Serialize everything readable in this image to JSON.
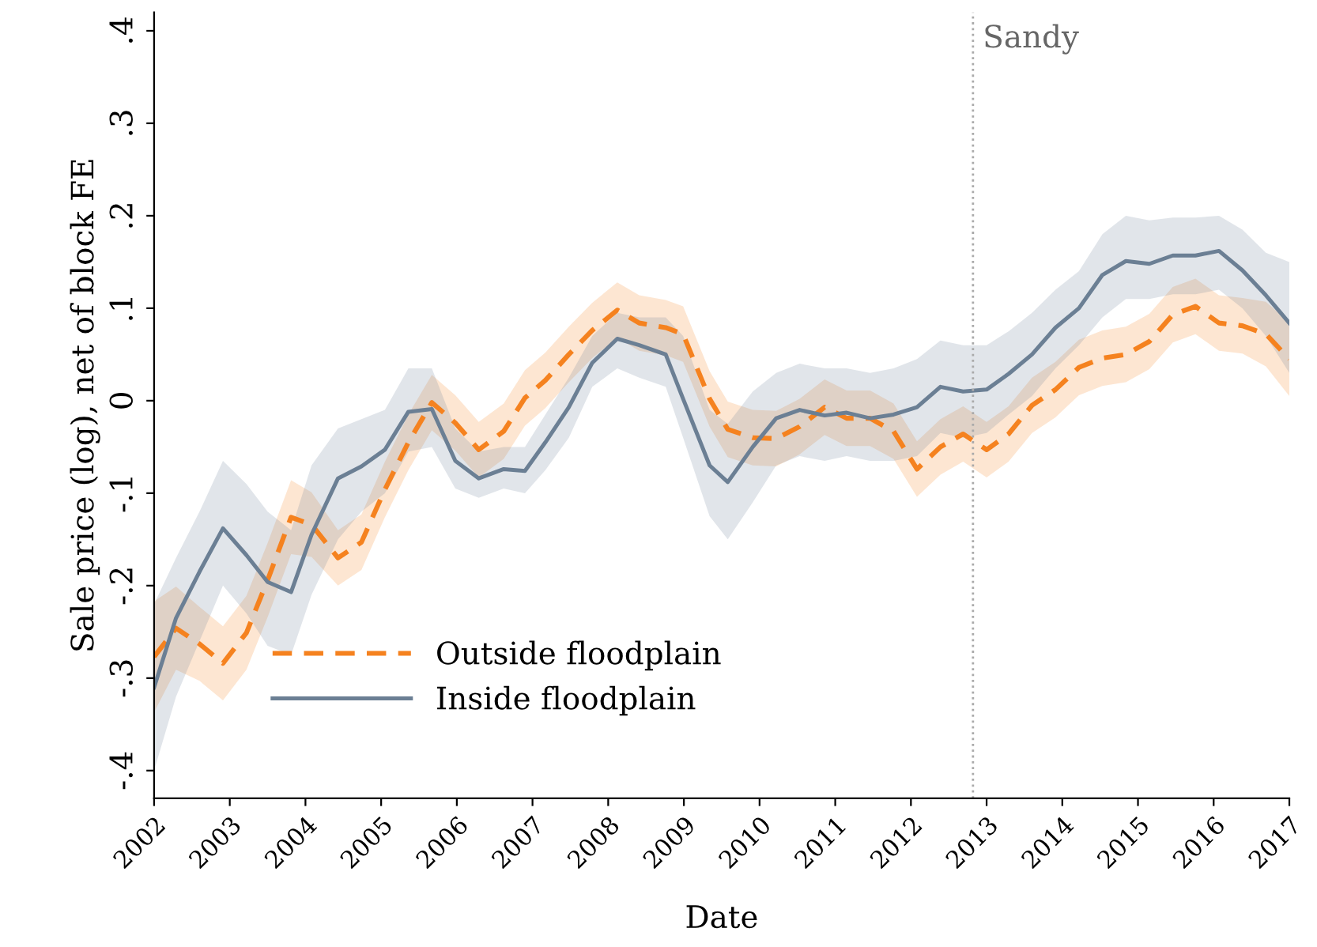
{
  "chart_data": {
    "type": "line",
    "xlabel": "Date",
    "ylabel": "Sale price (log), net of block FE",
    "x": [
      2002,
      2002.29,
      2002.6,
      2002.91,
      2003.22,
      2003.5,
      2003.81,
      2004.08,
      2004.43,
      2004.74,
      2005.05,
      2005.36,
      2005.67,
      2005.98,
      2006.29,
      2006.62,
      2006.9,
      2007.17,
      2007.48,
      2007.79,
      2008.12,
      2008.41,
      2008.76,
      2008.99,
      2009.34,
      2009.58,
      2009.91,
      2010.22,
      2010.53,
      2010.86,
      2011.15,
      2011.46,
      2011.77,
      2012.08,
      2012.39,
      2012.69,
      2013.0,
      2013.29,
      2013.6,
      2013.91,
      2014.22,
      2014.53,
      2014.84,
      2015.15,
      2015.46,
      2015.76,
      2016.07,
      2016.38,
      2016.69,
      2017.0
    ],
    "series": [
      {
        "name": "Outside floodplain",
        "color": "#f5821f",
        "line_style": "dashed",
        "values": [
          -0.277,
          -0.246,
          -0.263,
          -0.284,
          -0.251,
          -0.194,
          -0.126,
          -0.134,
          -0.17,
          -0.153,
          -0.096,
          -0.045,
          -0.002,
          -0.024,
          -0.053,
          -0.033,
          0.003,
          0.022,
          0.05,
          0.076,
          0.098,
          0.084,
          0.079,
          0.072,
          0.002,
          -0.031,
          -0.04,
          -0.041,
          -0.028,
          -0.007,
          -0.019,
          -0.019,
          -0.033,
          -0.074,
          -0.05,
          -0.036,
          -0.053,
          -0.036,
          -0.005,
          0.012,
          0.036,
          0.046,
          0.05,
          0.064,
          0.093,
          0.102,
          0.084,
          0.081,
          0.072,
          0.045
        ],
        "lower": [
          -0.337,
          -0.291,
          -0.303,
          -0.324,
          -0.291,
          -0.234,
          -0.166,
          -0.169,
          -0.2,
          -0.183,
          -0.126,
          -0.075,
          -0.032,
          -0.054,
          -0.083,
          -0.063,
          -0.027,
          -0.008,
          0.02,
          0.046,
          0.068,
          0.054,
          0.049,
          0.042,
          -0.028,
          -0.061,
          -0.07,
          -0.071,
          -0.058,
          -0.037,
          -0.049,
          -0.049,
          -0.063,
          -0.104,
          -0.08,
          -0.066,
          -0.083,
          -0.066,
          -0.035,
          -0.018,
          0.006,
          0.016,
          0.02,
          0.034,
          0.063,
          0.072,
          0.054,
          0.051,
          0.037,
          0.005
        ],
        "upper": [
          -0.217,
          -0.201,
          -0.223,
          -0.244,
          -0.211,
          -0.154,
          -0.086,
          -0.099,
          -0.14,
          -0.123,
          -0.066,
          -0.015,
          0.028,
          0.006,
          -0.023,
          -0.003,
          0.033,
          0.052,
          0.08,
          0.106,
          0.128,
          0.114,
          0.109,
          0.102,
          0.032,
          -0.001,
          -0.01,
          -0.011,
          0.002,
          0.023,
          0.011,
          0.011,
          -0.003,
          -0.044,
          -0.02,
          -0.006,
          -0.023,
          -0.006,
          0.025,
          0.042,
          0.066,
          0.076,
          0.08,
          0.094,
          0.123,
          0.132,
          0.114,
          0.111,
          0.107,
          0.085
        ]
      },
      {
        "name": "Inside floodplain",
        "color": "#6b7f94",
        "line_style": "solid",
        "values": [
          -0.31,
          -0.235,
          -0.185,
          -0.138,
          -0.167,
          -0.196,
          -0.207,
          -0.145,
          -0.084,
          -0.071,
          -0.053,
          -0.012,
          -0.009,
          -0.065,
          -0.084,
          -0.074,
          -0.076,
          -0.045,
          -0.007,
          0.041,
          0.067,
          0.06,
          0.05,
          0.002,
          -0.07,
          -0.088,
          -0.05,
          -0.019,
          -0.01,
          -0.016,
          -0.013,
          -0.019,
          -0.015,
          -0.007,
          0.015,
          0.01,
          0.012,
          0.029,
          0.05,
          0.079,
          0.1,
          0.136,
          0.151,
          0.148,
          0.157,
          0.157,
          0.162,
          0.141,
          0.114,
          0.084
        ],
        "lower": [
          -0.4,
          -0.32,
          -0.26,
          -0.2,
          -0.23,
          -0.265,
          -0.275,
          -0.21,
          -0.15,
          -0.12,
          -0.1,
          -0.055,
          -0.05,
          -0.095,
          -0.105,
          -0.095,
          -0.1,
          -0.075,
          -0.04,
          0.015,
          0.035,
          0.025,
          0.015,
          -0.04,
          -0.125,
          -0.15,
          -0.11,
          -0.07,
          -0.06,
          -0.065,
          -0.06,
          -0.065,
          -0.065,
          -0.06,
          -0.035,
          -0.04,
          -0.035,
          -0.015,
          0.005,
          0.035,
          0.06,
          0.09,
          0.11,
          0.11,
          0.115,
          0.115,
          0.12,
          0.1,
          0.07,
          0.03
        ],
        "upper": [
          -0.22,
          -0.17,
          -0.12,
          -0.065,
          -0.09,
          -0.12,
          -0.14,
          -0.07,
          -0.03,
          -0.02,
          -0.01,
          0.035,
          0.035,
          -0.03,
          -0.055,
          -0.05,
          -0.05,
          -0.015,
          0.025,
          0.07,
          0.095,
          0.09,
          0.09,
          0.07,
          -0.01,
          -0.025,
          0.01,
          0.03,
          0.04,
          0.035,
          0.035,
          0.03,
          0.035,
          0.045,
          0.065,
          0.06,
          0.06,
          0.075,
          0.095,
          0.12,
          0.14,
          0.18,
          0.2,
          0.195,
          0.198,
          0.198,
          0.2,
          0.185,
          0.16,
          0.15
        ]
      }
    ],
    "xlim": [
      2002,
      2017
    ],
    "xticks": [
      2002,
      2003,
      2004,
      2005,
      2006,
      2007,
      2008,
      2009,
      2010,
      2011,
      2012,
      2013,
      2014,
      2015,
      2016,
      2017
    ],
    "ylim": [
      -0.43,
      0.42
    ],
    "yticks": [
      {
        "value": -0.4,
        "label": "-.4"
      },
      {
        "value": -0.3,
        "label": "-.3"
      },
      {
        "value": -0.2,
        "label": "-.2"
      },
      {
        "value": -0.1,
        "label": "-.1"
      },
      {
        "value": 0,
        "label": "0"
      },
      {
        "value": 0.1,
        "label": ".1"
      },
      {
        "value": 0.2,
        "label": ".2"
      },
      {
        "value": 0.3,
        "label": ".3"
      },
      {
        "value": 0.4,
        "label": ".4"
      }
    ],
    "ref_lines": [
      {
        "axis": "x",
        "value": 2012.82,
        "label": "Sandy",
        "color": "#aaaaaa",
        "line_style": "dotted"
      }
    ],
    "grid": false,
    "legend": "bottom left",
    "marker": "none"
  }
}
